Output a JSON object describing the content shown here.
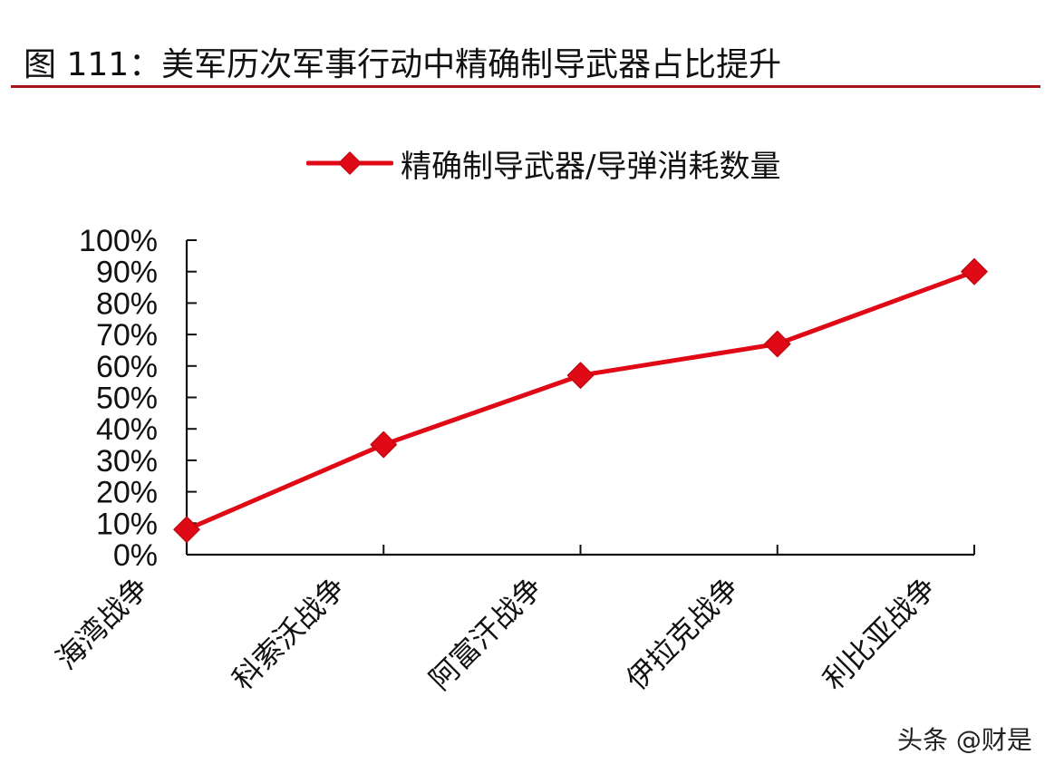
{
  "title": "图 111：美军历次军事行动中精确制导武器占比提升",
  "legend": {
    "label": "精确制导武器/导弹消耗数量",
    "marker": "diamond",
    "color": "#e00a16"
  },
  "watermark": "头条 @财是",
  "colors": {
    "series": "#e00a16",
    "title_rule": "#a8141c",
    "axis": "#111111"
  },
  "chart_data": {
    "type": "line",
    "title": "图 111：美军历次军事行动中精确制导武器占比提升",
    "xlabel": "",
    "ylabel": "",
    "categories": [
      "海湾战争",
      "科索沃战争",
      "阿富汗战争",
      "伊拉克战争",
      "利比亚战争"
    ],
    "series": [
      {
        "name": "精确制导武器/导弹消耗数量",
        "values": [
          8,
          35,
          57,
          67,
          90
        ],
        "unit": "%",
        "marker": "diamond",
        "color": "#e00a16"
      }
    ],
    "yticks": [
      "0%",
      "10%",
      "20%",
      "30%",
      "40%",
      "50%",
      "60%",
      "70%",
      "80%",
      "90%",
      "100%"
    ],
    "ylim": [
      0,
      100
    ],
    "grid": false,
    "legend_position": "top",
    "xtick_rotation": -45
  }
}
